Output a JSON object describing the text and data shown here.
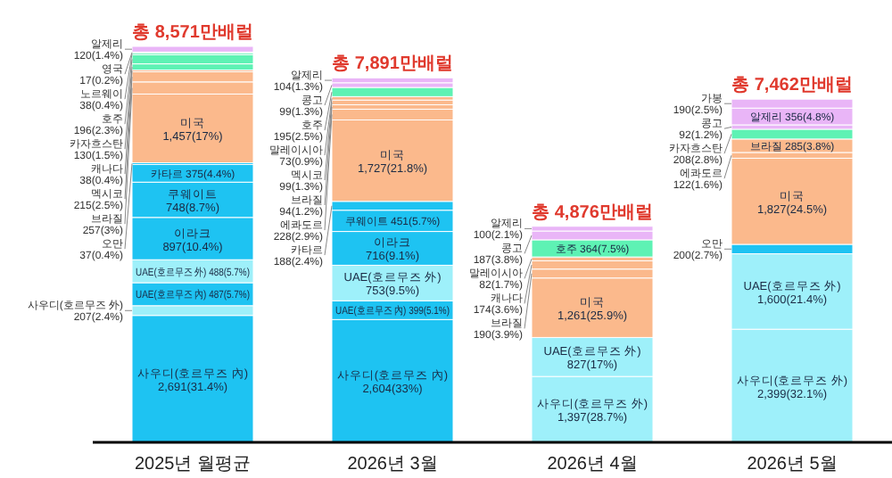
{
  "chart_data": {
    "type": "bar",
    "stacked": true,
    "tick_labels": "x",
    "categories": [
      "2025년 월평균",
      "2026년 3월",
      "2026년 4월",
      "2026년 5월"
    ],
    "totals": [
      "총 8,571만배럴",
      "총 7,891만배럴",
      "총 4,876만배럴",
      "총 7,462만배럴"
    ],
    "series": [
      {
        "color": "#1ec3f2",
        "values": [
          2691,
          2604,
          null,
          null
        ],
        "value_labels": [
          "사우디(호르무즈 內) 2,691(31.4%)",
          "사우디(호르무즈 內) 2,604(33%)",
          null,
          null
        ]
      },
      {
        "color": "#9ef0fa",
        "values": [
          207,
          null,
          1397,
          2399
        ],
        "value_labels": [
          "사우디(호르무즈 外) 207(2.4%)",
          null,
          "사우디(호르무즈 外) 1,397(28.7%)",
          "사우디(호르무즈 外) 2,399(32.1%)"
        ]
      },
      {
        "color": "#1ec3f2",
        "values": [
          487,
          399,
          null,
          null
        ],
        "value_labels": [
          "UAE(호르무즈 內) 487(5.7%)",
          "UAE(호르무즈 內) 399(5.1%)",
          null,
          null
        ]
      },
      {
        "color": "#9ef0fa",
        "values": [
          488,
          753,
          827,
          1600
        ],
        "value_labels": [
          "UAE(호르무즈 外) 488(5.7%)",
          "UAE(호르무즈 外) 753(9.5%)",
          "UAE(호르무즈 外) 827(17%)",
          "UAE(호르무즈 外) 1,600(21.4%)"
        ]
      },
      {
        "color": "#1ec3f2",
        "values": [
          897,
          716,
          null,
          null
        ],
        "value_labels": [
          "이라크 897(10.4%)",
          "이라크 716(9.1%)",
          null,
          null
        ]
      },
      {
        "color": "#1ec3f2",
        "values": [
          748,
          451,
          null,
          null
        ],
        "value_labels": [
          "쿠웨이트 748(8.7%)",
          "쿠웨이트 451(5.7%)",
          null,
          null
        ]
      },
      {
        "color": "#1ec3f2",
        "values": [
          375,
          188,
          null,
          null
        ],
        "value_labels": [
          "카타르 375(4.4%)",
          "카타르 188(2.4%)",
          null,
          null
        ]
      },
      {
        "color": "#1ec3f2",
        "values": [
          37,
          null,
          null,
          200
        ],
        "value_labels": [
          "오만 37(0.4%)",
          null,
          null,
          "오만 200(2.7%)"
        ]
      },
      {
        "color": "#fbb98c",
        "values": [
          1457,
          1727,
          1261,
          1827
        ],
        "value_labels": [
          "미국 1,457(17%)",
          "미국 1,727(21.8%)",
          "미국 1,261(25.9%)",
          "미국 1,827(24.5%)"
        ]
      },
      {
        "color": "#fbb98c",
        "values": [
          null,
          228,
          null,
          122
        ],
        "value_labels": [
          null,
          "에콰도르 228(2.9%)",
          null,
          "에콰도르 122(1.6%)"
        ]
      },
      {
        "color": "#fbb98c",
        "values": [
          257,
          94,
          190,
          285
        ],
        "value_labels": [
          "브라질 257(3%)",
          "브라질 94(1.2%)",
          "브라질 190(3.9%)",
          "브라질 285(3.8%)"
        ]
      },
      {
        "color": "#fbb98c",
        "values": [
          215,
          99,
          null,
          null
        ],
        "value_labels": [
          "멕시코 215(2.5%)",
          "멕시코 99(1.3%)",
          null,
          null
        ]
      },
      {
        "color": "#fbb98c",
        "values": [
          38,
          null,
          174,
          null
        ],
        "value_labels": [
          "캐나다 38(0.4%)",
          null,
          "캐나다 174(3.6%)",
          null
        ]
      },
      {
        "color": "#fbb98c",
        "values": [
          null,
          73,
          82,
          null
        ],
        "value_labels": [
          null,
          "말레이시아 73(0.9%)",
          "말레이시아 82(1.7%)",
          null
        ]
      },
      {
        "color": "#5ef2b4",
        "values": [
          130,
          null,
          null,
          208
        ],
        "value_labels": [
          "카자흐스탄 130(1.5%)",
          null,
          null,
          "카자흐스탄 208(2.8%)"
        ]
      },
      {
        "color": "#5ef2b4",
        "values": [
          196,
          195,
          364,
          null
        ],
        "value_labels": [
          "호주 196(2.3%)",
          "호주 195(2.5%)",
          "호주 364(7.5%)",
          null
        ]
      },
      {
        "color": "#5ef2b4",
        "values": [
          38,
          null,
          null,
          null
        ],
        "value_labels": [
          "노르웨이 38(0.4%)",
          null,
          null,
          null
        ]
      },
      {
        "color": "#5ef2b4",
        "values": [
          17,
          null,
          null,
          null
        ],
        "value_labels": [
          "영국 17(0.2%)",
          null,
          null,
          null
        ]
      },
      {
        "color": "#e9b5f7",
        "values": [
          null,
          99,
          187,
          92
        ],
        "value_labels": [
          null,
          "콩고 99(1.3%)",
          "콩고 187(3.8%)",
          "콩고 92(1.2%)"
        ]
      },
      {
        "color": "#e9b5f7",
        "values": [
          120,
          104,
          100,
          356
        ],
        "value_labels": [
          "알제리 120(1.4%)",
          "알제리 104(1.3%)",
          "알제리 100(2.1%)",
          "알제리 356(4.8%)"
        ]
      },
      {
        "color": "#e9b5f7",
        "values": [
          null,
          null,
          null,
          190
        ],
        "value_labels": [
          null,
          null,
          null,
          "가봉 190(2.5%)"
        ]
      }
    ]
  }
}
